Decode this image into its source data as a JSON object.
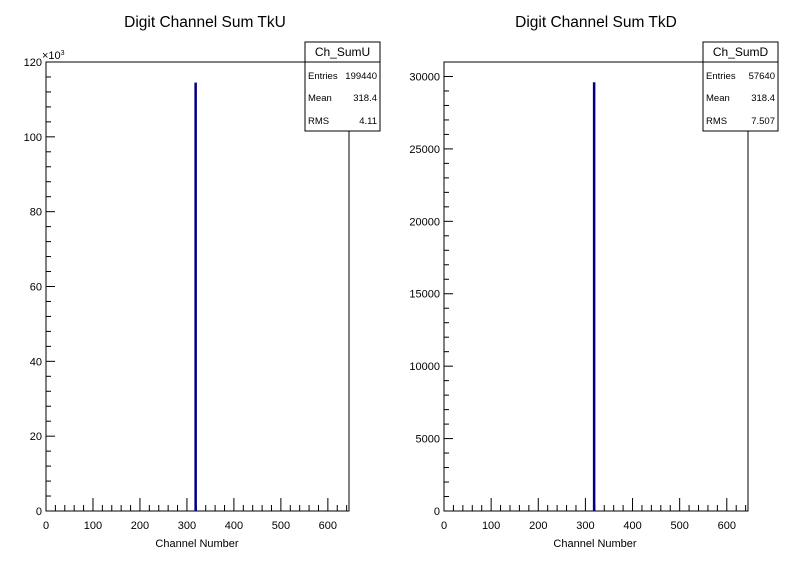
{
  "chart_data": [
    {
      "type": "bar",
      "title": "Digit Channel Sum TkU",
      "xlabel": "Channel Number",
      "ylabel": "",
      "xlim": [
        0,
        645
      ],
      "ylim": [
        0,
        120000
      ],
      "x_ticks": [
        0,
        100,
        200,
        300,
        400,
        500,
        600
      ],
      "y_ticks": [
        0,
        20,
        40,
        60,
        80,
        100,
        120
      ],
      "y_exponent_label": "×10",
      "y_exponent_power": "3",
      "bins": [
        {
          "x": 318,
          "value": 114500
        }
      ],
      "stats": {
        "name": "Ch_SumU",
        "rows": [
          {
            "label": "Entries",
            "value": "199440"
          },
          {
            "label": "Mean",
            "value": "318.4"
          },
          {
            "label": "RMS",
            "value": "4.11"
          }
        ]
      },
      "grid": false,
      "line_color": "#000080"
    },
    {
      "type": "bar",
      "title": "Digit Channel Sum TkD",
      "xlabel": "Channel Number",
      "ylabel": "",
      "xlim": [
        0,
        645
      ],
      "ylim": [
        0,
        31000
      ],
      "x_ticks": [
        0,
        100,
        200,
        300,
        400,
        500,
        600
      ],
      "y_ticks": [
        0,
        5000,
        10000,
        15000,
        20000,
        25000,
        30000
      ],
      "bins": [
        {
          "x": 318,
          "value": 29600
        }
      ],
      "stats": {
        "name": "Ch_SumD",
        "rows": [
          {
            "label": "Entries",
            "value": "57640"
          },
          {
            "label": "Mean",
            "value": "318.4"
          },
          {
            "label": "RMS",
            "value": "7.507"
          }
        ]
      },
      "grid": false,
      "line_color": "#000080"
    }
  ]
}
